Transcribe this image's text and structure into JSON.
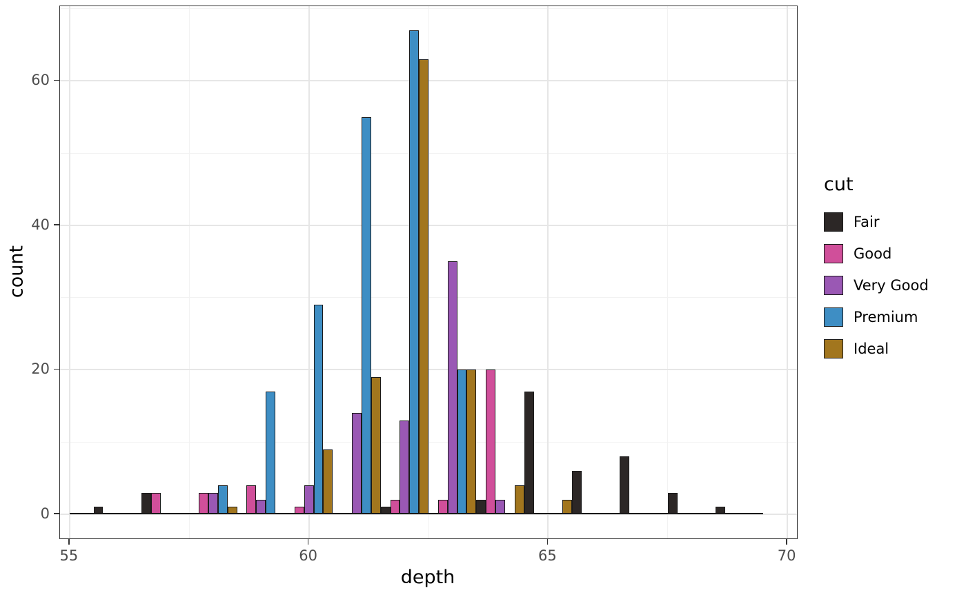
{
  "figure": {
    "background": "#ffffff",
    "panel_border_color": "#333333",
    "grid_major_color": "#e6e6e6",
    "grid_minor_color": "#f2f2f2",
    "bar_outline_color": "#1a1a1a",
    "tick_label_color": "#4d4d4d"
  },
  "axes": {
    "x": {
      "label": "depth",
      "ticks": [
        55,
        60,
        65,
        70
      ],
      "minor_ticks": [
        57.5,
        62.5,
        67.5
      ],
      "range": [
        54.8,
        70.2
      ]
    },
    "y": {
      "label": "count",
      "ticks": [
        0,
        20,
        40,
        60
      ],
      "minor_ticks": [
        10,
        30,
        50,
        70
      ],
      "range": [
        -3.35,
        70.35
      ]
    }
  },
  "legend": {
    "title": "cut"
  },
  "chart_data": {
    "type": "bar",
    "subtype": "dodged-histogram",
    "title": "",
    "xlabel": "depth",
    "ylabel": "count",
    "ylim": [
      0,
      67
    ],
    "bin_centers": [
      56,
      57,
      58,
      59,
      60,
      61,
      62,
      63,
      64,
      65,
      66,
      67,
      68,
      69
    ],
    "bar_width": 0.2,
    "baseline_span": [
      55.0,
      69.5
    ],
    "series": [
      {
        "name": "Fair",
        "color": "#2c2726",
        "values": [
          1,
          3,
          0,
          0,
          0,
          0,
          1,
          0,
          2,
          17,
          6,
          8,
          3,
          1
        ]
      },
      {
        "name": "Good",
        "color": "#d04f9a",
        "values": [
          0,
          3,
          3,
          4,
          1,
          0,
          2,
          2,
          20,
          0,
          0,
          0,
          0,
          0
        ]
      },
      {
        "name": "Very Good",
        "color": "#9a58b4",
        "values": [
          0,
          0,
          3,
          2,
          4,
          14,
          13,
          35,
          2,
          0,
          0,
          0,
          0,
          0
        ]
      },
      {
        "name": "Premium",
        "color": "#3e8ec4",
        "values": [
          0,
          0,
          4,
          17,
          29,
          55,
          67,
          20,
          0,
          0,
          0,
          0,
          0,
          0
        ]
      },
      {
        "name": "Ideal",
        "color": "#a2761e",
        "values": [
          0,
          0,
          1,
          0,
          9,
          19,
          63,
          20,
          4,
          2,
          0,
          0,
          0,
          0
        ]
      }
    ]
  }
}
